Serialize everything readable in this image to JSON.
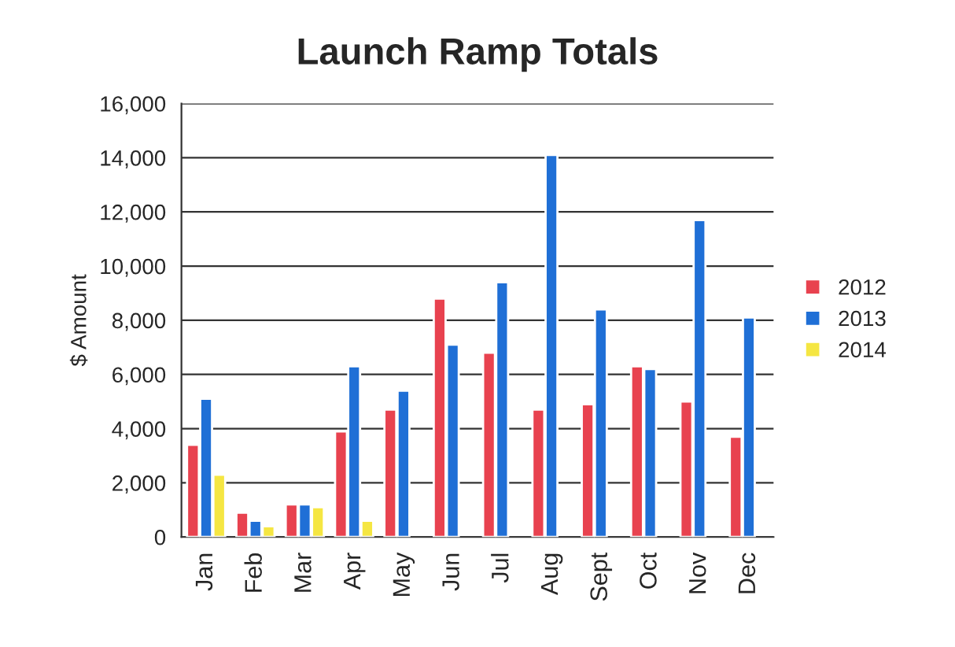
{
  "chart_data": {
    "type": "bar",
    "title": "Launch Ramp Totals",
    "ylabel": "$ Amount",
    "categories": [
      "Jan",
      "Feb",
      "Mar",
      "Apr",
      "May",
      "Jun",
      "Jul",
      "Aug",
      "Sept",
      "Oct",
      "Nov",
      "Dec"
    ],
    "series": [
      {
        "name": "2012",
        "color": "#e8424f",
        "values": [
          3400,
          900,
          1200,
          3900,
          4700,
          8800,
          6800,
          4700,
          4900,
          6300,
          5000,
          3700
        ]
      },
      {
        "name": "2013",
        "color": "#1f6fd6",
        "values": [
          5100,
          600,
          1200,
          6300,
          5400,
          7100,
          9400,
          14100,
          8400,
          6200,
          11700,
          8100
        ]
      },
      {
        "name": "2014",
        "color": "#f5e642",
        "values": [
          2300,
          400,
          1100,
          600,
          null,
          null,
          null,
          null,
          null,
          null,
          null,
          null
        ]
      }
    ],
    "ylim": [
      0,
      16000
    ],
    "yticks": [
      {
        "value": 0,
        "label": "0"
      },
      {
        "value": 2000,
        "label": "2,000"
      },
      {
        "value": 4000,
        "label": "4,000"
      },
      {
        "value": 6000,
        "label": "6,000"
      },
      {
        "value": 8000,
        "label": "8,000"
      },
      {
        "value": 10000,
        "label": "10,000"
      },
      {
        "value": 12000,
        "label": "12,000"
      },
      {
        "value": 14000,
        "label": "14,000"
      },
      {
        "value": 16000,
        "label": "16,000"
      }
    ],
    "grid": "y",
    "legend": "right"
  }
}
